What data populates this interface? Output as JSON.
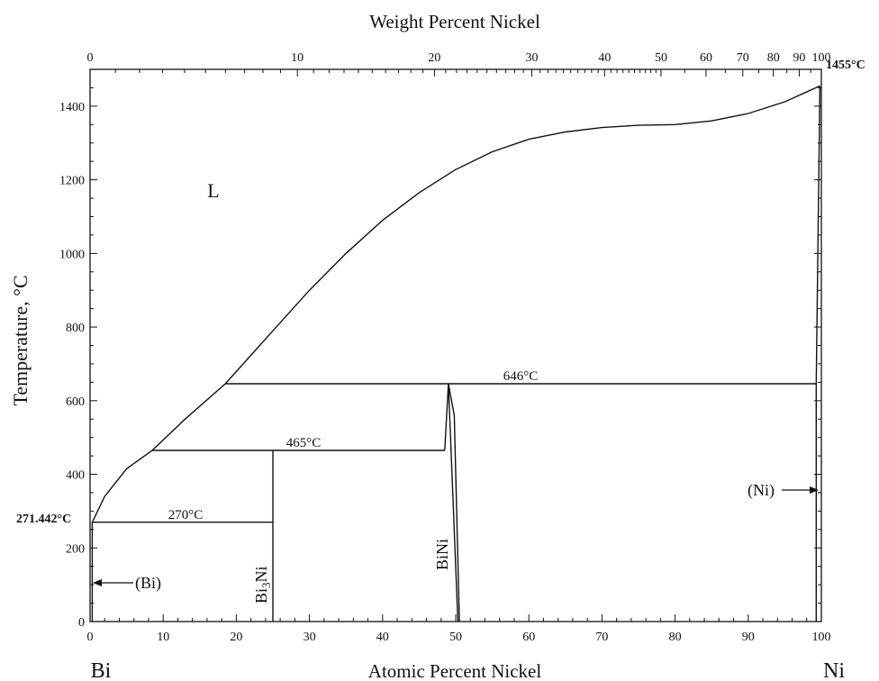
{
  "diagram": {
    "top_axis_title": "Weight Percent Nickel",
    "bottom_axis_title": "Atomic Percent Nickel",
    "y_axis_title": "Temperature, °C",
    "left_element": "Bi",
    "right_element": "Ni",
    "labels": {
      "liquid": "L",
      "bi_phase": "(Bi)",
      "ni_phase": "(Ni)",
      "bi3ni_main": "Bi",
      "bi3ni_sub": "3",
      "bi3ni_tail": "Ni",
      "bini": "BiNi",
      "t646": "646°C",
      "t465": "465°C",
      "t270": "270°C",
      "t271": "271.442°C",
      "t1455": "1455°C"
    },
    "bottom_ticks": [
      "0",
      "10",
      "20",
      "30",
      "40",
      "50",
      "60",
      "70",
      "80",
      "90",
      "100"
    ],
    "top_ticks": [
      "0",
      "10",
      "20",
      "30",
      "40",
      "50",
      "60",
      "70",
      "80",
      "90",
      "100"
    ],
    "y_ticks": [
      "0",
      "200",
      "400",
      "600",
      "800",
      "1000",
      "1200",
      "1400"
    ]
  },
  "chart_data": {
    "type": "line",
    "title": "",
    "xlabel": "Atomic Percent Nickel",
    "x2label": "Weight Percent Nickel",
    "ylabel": "Temperature, °C",
    "xlim": [
      0,
      100
    ],
    "ylim": [
      0,
      1500
    ],
    "grid": false,
    "series": [
      {
        "values": [
          [
            0.35,
            271.4
          ],
          [
            2,
            340
          ],
          [
            5,
            415
          ],
          [
            8.5,
            465
          ],
          [
            13,
            550
          ],
          [
            18.5,
            646
          ],
          [
            25,
            790
          ],
          [
            30,
            900
          ],
          [
            35,
            1000
          ],
          [
            40,
            1090
          ],
          [
            45,
            1165
          ],
          [
            50,
            1228
          ],
          [
            55,
            1276
          ],
          [
            60,
            1310
          ],
          [
            65,
            1330
          ],
          [
            70,
            1342
          ],
          [
            75,
            1348
          ],
          [
            80,
            1350
          ],
          [
            85,
            1360
          ],
          [
            90,
            1380
          ],
          [
            95,
            1412
          ],
          [
            99.8,
            1455
          ]
        ]
      },
      {
        "values": [
          [
            0.3,
            270
          ],
          [
            25,
            270
          ]
        ]
      },
      {
        "values": [
          [
            8.5,
            465
          ],
          [
            48.5,
            465
          ]
        ]
      },
      {
        "values": [
          [
            18.5,
            646
          ],
          [
            99.3,
            646
          ]
        ]
      },
      {
        "values": [
          [
            25,
            0
          ],
          [
            25,
            465
          ]
        ]
      },
      {
        "values": [
          [
            48.5,
            465
          ],
          [
            49,
            646
          ],
          [
            50.3,
            0
          ]
        ]
      },
      {
        "values": [
          [
            49,
            646
          ],
          [
            49.8,
            560
          ],
          [
            50.5,
            0
          ]
        ]
      },
      {
        "values": [
          [
            0.3,
            0
          ],
          [
            0.3,
            271.4
          ]
        ]
      },
      {
        "values": [
          [
            99.3,
            0
          ],
          [
            99.3,
            646
          ],
          [
            99.8,
            1455
          ]
        ]
      }
    ],
    "annotations": [
      {
        "text": "646°C",
        "x": 58,
        "y": 646
      },
      {
        "text": "465°C",
        "x": 29,
        "y": 465
      },
      {
        "text": "270°C",
        "x": 13,
        "y": 270
      },
      {
        "text": "271.442°C",
        "x": 0,
        "y": 271.4
      },
      {
        "text": "1455°C",
        "x": 100,
        "y": 1455
      }
    ]
  }
}
